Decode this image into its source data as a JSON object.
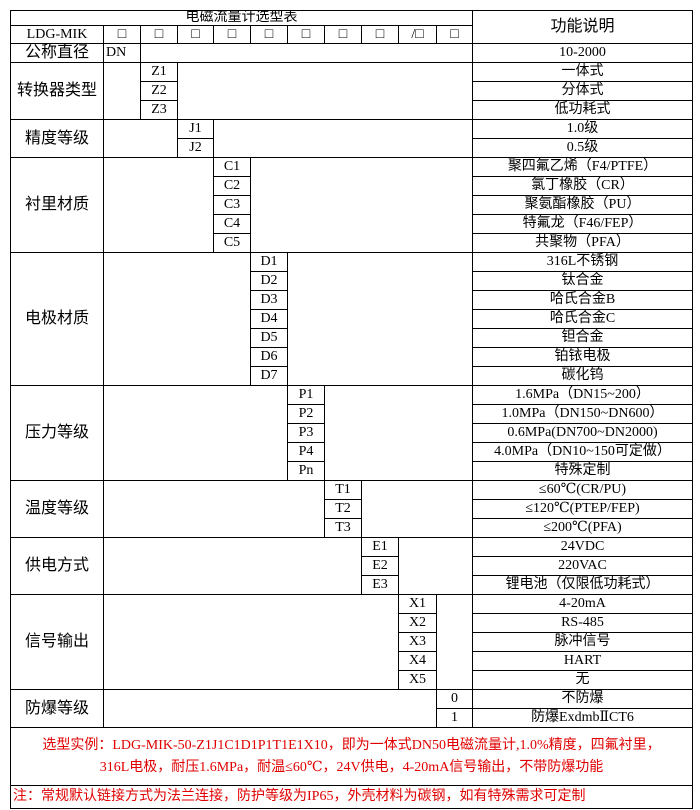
{
  "header": {
    "title": "电磁流量计选型表",
    "function_header": "功能说明",
    "model_prefix": "LDG-MIK",
    "boxes": [
      "□",
      "□",
      "□",
      "□",
      "□",
      "□",
      "□",
      "□",
      "/□",
      "□"
    ]
  },
  "dn_row": {
    "label": "公称直径",
    "code": "DN",
    "function": "10-2000"
  },
  "sections": [
    {
      "label": "转换器类型",
      "options": [
        {
          "code": "Z1",
          "function": "一体式"
        },
        {
          "code": "Z2",
          "function": "分体式"
        },
        {
          "code": "Z3",
          "function": "低功耗式"
        }
      ]
    },
    {
      "label": "精度等级",
      "options": [
        {
          "code": "J1",
          "function": "1.0级"
        },
        {
          "code": "J2",
          "function": "0.5级"
        }
      ]
    },
    {
      "label": "衬里材质",
      "options": [
        {
          "code": "C1",
          "function": "聚四氟乙烯（F4/PTFE）"
        },
        {
          "code": "C2",
          "function": "氯丁橡胶（CR）"
        },
        {
          "code": "C3",
          "function": "聚氨酯橡胶（PU）"
        },
        {
          "code": "C4",
          "function": "特氟龙（F46/FEP）"
        },
        {
          "code": "C5",
          "function": "共聚物（PFA）"
        }
      ]
    },
    {
      "label": "电极材质",
      "options": [
        {
          "code": "D1",
          "function": "316L不锈钢"
        },
        {
          "code": "D2",
          "function": "钛合金"
        },
        {
          "code": "D3",
          "function": "哈氏合金B"
        },
        {
          "code": "D4",
          "function": "哈氏合金C"
        },
        {
          "code": "D5",
          "function": "钽合金"
        },
        {
          "code": "D6",
          "function": "铂铱电极"
        },
        {
          "code": "D7",
          "function": "碳化钨"
        }
      ]
    },
    {
      "label": "压力等级",
      "options": [
        {
          "code": "P1",
          "function": "1.6MPa（DN15~200）"
        },
        {
          "code": "P2",
          "function": "1.0MPa（DN150~DN600）"
        },
        {
          "code": "P3",
          "function": "0.6MPa(DN700~DN2000)"
        },
        {
          "code": "P4",
          "function": "4.0MPa（DN10~150可定做）"
        },
        {
          "code": "Pn",
          "function": "特殊定制"
        }
      ]
    },
    {
      "label": "温度等级",
      "options": [
        {
          "code": "T1",
          "function": "≤60℃(CR/PU)"
        },
        {
          "code": "T2",
          "function": "≤120℃(PTEP/FEP)"
        },
        {
          "code": "T3",
          "function": "≤200℃(PFA)"
        }
      ]
    },
    {
      "label": "供电方式",
      "options": [
        {
          "code": "E1",
          "function": "24VDC"
        },
        {
          "code": "E2",
          "function": "220VAC"
        },
        {
          "code": "E3",
          "function": "锂电池（仅限低功耗式）"
        }
      ]
    },
    {
      "label": "信号输出",
      "options": [
        {
          "code": "X1",
          "function": "4-20mA"
        },
        {
          "code": "X2",
          "function": "RS-485"
        },
        {
          "code": "X3",
          "function": "脉冲信号"
        },
        {
          "code": "X4",
          "function": "HART"
        },
        {
          "code": "X5",
          "function": "无"
        }
      ]
    },
    {
      "label": "防爆等级",
      "options": [
        {
          "code": "0",
          "function": "不防爆"
        },
        {
          "code": "1",
          "function": "防爆ExdmbⅡCT6"
        }
      ]
    }
  ],
  "example": "选型实例：LDG-MIK-50-Z1J1C1D1P1T1E1X10，即为一体式DN50电磁流量计,1.0%精度，四氟衬里，316L电极，耐压1.6MPa，耐温≤60℃，24V供电，4-20mA信号输出，不带防爆功能",
  "note": "注：常规默认链接方式为法兰连接，防护等级为IP65，外壳材料为碳钢，如有特殊需求可定制",
  "colors": {
    "text": "#000000",
    "note_text": "#e00000",
    "border": "#000000"
  }
}
